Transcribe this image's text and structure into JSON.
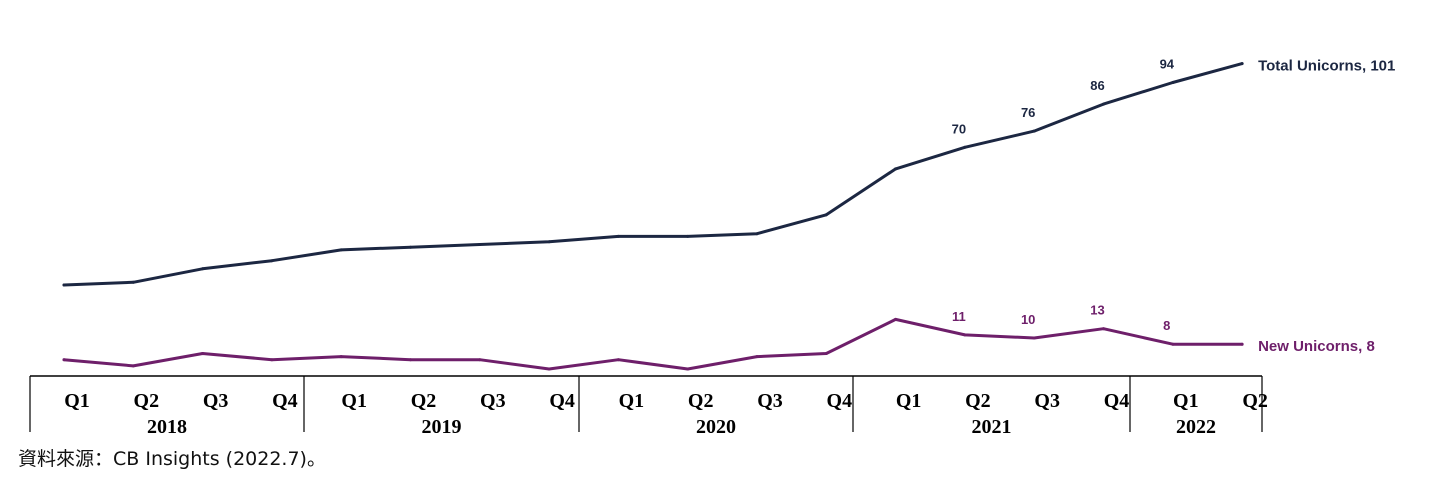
{
  "chart_data": {
    "type": "line",
    "x": [
      "2018 Q1",
      "2018 Q2",
      "2018 Q3",
      "2018 Q4",
      "2019 Q1",
      "2019 Q2",
      "2019 Q3",
      "2019 Q4",
      "2020 Q1",
      "2020 Q2",
      "2020 Q3",
      "2020 Q4",
      "2021 Q1",
      "2021 Q2",
      "2021 Q3",
      "2021 Q4",
      "2022 Q1",
      "2022 Q2"
    ],
    "x_axis": {
      "years": [
        {
          "label": "2018",
          "quarters": [
            "Q1",
            "Q2",
            "Q3",
            "Q4"
          ]
        },
        {
          "label": "2019",
          "quarters": [
            "Q1",
            "Q2",
            "Q3",
            "Q4"
          ]
        },
        {
          "label": "2020",
          "quarters": [
            "Q1",
            "Q2",
            "Q3",
            "Q4"
          ]
        },
        {
          "label": "2021",
          "quarters": [
            "Q1",
            "Q2",
            "Q3",
            "Q4"
          ]
        },
        {
          "label": "2022",
          "quarters": [
            "Q1",
            "Q2"
          ]
        }
      ]
    },
    "series": [
      {
        "key": "total",
        "end_label": "Total Unicorns, 101",
        "color": "#1c2742",
        "values": [
          19,
          20,
          25,
          28,
          32,
          33,
          34,
          35,
          37,
          37,
          38,
          45,
          62,
          70,
          76,
          86,
          94,
          101
        ],
        "data_labels": {
          "13": "70",
          "14": "76",
          "15": "86",
          "16": "94"
        }
      },
      {
        "key": "new",
        "end_label": "New Unicorns, 8",
        "color": "#6e1f6a",
        "values": [
          3,
          1,
          5,
          3,
          4,
          3,
          3,
          0,
          3,
          0,
          4,
          5,
          16,
          11,
          10,
          13,
          8,
          8
        ],
        "data_labels": {
          "13": "11",
          "14": "10",
          "15": "13",
          "16": "8"
        }
      }
    ],
    "legend": "end-of-line labels",
    "grid": false
  },
  "source_note": "資料來源：CB Insights (2022.7)。"
}
